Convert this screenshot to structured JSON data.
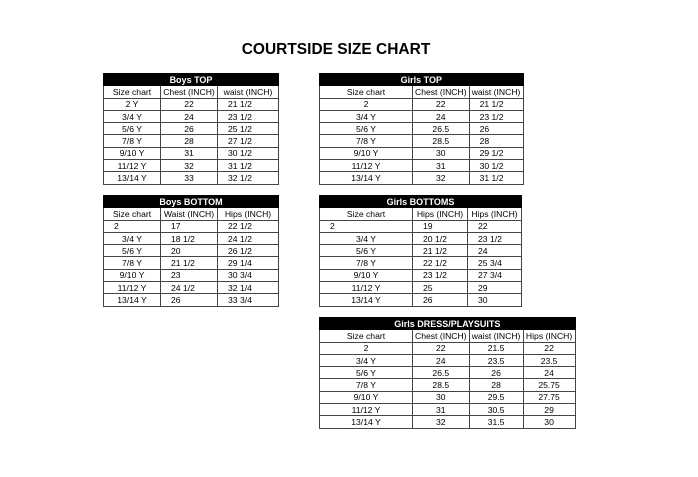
{
  "title": "COURTSIDE SIZE CHART",
  "tables": [
    {
      "title": "Boys TOP",
      "columns": [
        "Size chart",
        "Chest (INCH)",
        "waist (INCH)"
      ],
      "rows": [
        [
          "2 Y",
          "22",
          "21  1/2"
        ],
        [
          "3/4  Y",
          "24",
          "23  1/2"
        ],
        [
          "5/6 Y",
          "26",
          "25  1/2"
        ],
        [
          "7/8 Y",
          "28",
          "27  1/2"
        ],
        [
          "9/10 Y",
          "31",
          "30  1/2"
        ],
        [
          "11/12 Y",
          "32",
          "31  1/2"
        ],
        [
          "13/14 Y",
          "33",
          "32  1/2"
        ]
      ]
    },
    {
      "title": "Boys BOTTOM",
      "columns": [
        "Size chart",
        "Waist (INCH)",
        "Hips (INCH)"
      ],
      "rows": [
        [
          "2",
          "17",
          "22  1/2"
        ],
        [
          "3/4  Y",
          "18  1/2",
          "24  1/2"
        ],
        [
          "5/6 Y",
          "20",
          "26  1/2"
        ],
        [
          "7/8 Y",
          "21  1/2",
          "29  1/4"
        ],
        [
          "9/10 Y",
          "23",
          "30  3/4"
        ],
        [
          "11/12 Y",
          "24  1/2",
          "32  1/4"
        ],
        [
          "13/14 Y",
          "26",
          "33  3/4"
        ]
      ]
    },
    {
      "title": "Girls TOP",
      "columns": [
        "Size chart",
        "Chest (INCH)",
        "waist (INCH)"
      ],
      "rows": [
        [
          "2",
          "22",
          "21  1/2"
        ],
        [
          "3/4  Y",
          "24",
          "23  1/2"
        ],
        [
          "5/6 Y",
          "26.5",
          "26"
        ],
        [
          "7/8 Y",
          "28.5",
          "28"
        ],
        [
          "9/10 Y",
          "30",
          "29  1/2"
        ],
        [
          "11/12 Y",
          "31",
          "30  1/2"
        ],
        [
          "13/14 Y",
          "32",
          "31  1/2"
        ]
      ]
    },
    {
      "title": "Girls BOTTOMS",
      "columns": [
        "Size chart",
        "Hips (INCH)",
        "Hips (INCH)"
      ],
      "rows": [
        [
          "2",
          "19",
          "22"
        ],
        [
          "3/4  Y",
          "20  1/2",
          "23  1/2"
        ],
        [
          "5/6 Y",
          "21  1/2",
          "24"
        ],
        [
          "7/8 Y",
          "22  1/2",
          "25  3/4"
        ],
        [
          "9/10 Y",
          "23  1/2",
          "27  3/4"
        ],
        [
          "11/12 Y",
          "25",
          "29"
        ],
        [
          "13/14 Y",
          "26",
          "30"
        ]
      ]
    },
    {
      "title": "Girls DRESS/PLAYSUITS",
      "columns": [
        "Size chart",
        "Chest (INCH)",
        "waist (INCH)",
        "Hips (INCH)"
      ],
      "rows": [
        [
          "2",
          "22",
          "21.5",
          "22"
        ],
        [
          "3/4  Y",
          "24",
          "23.5",
          "23.5"
        ],
        [
          "5/6 Y",
          "26.5",
          "26",
          "24"
        ],
        [
          "7/8 Y",
          "28.5",
          "28",
          "25.75"
        ],
        [
          "9/10 Y",
          "30",
          "29.5",
          "27.75"
        ],
        [
          "11/12 Y",
          "31",
          "30.5",
          "29"
        ],
        [
          "13/14 Y",
          "32",
          "31.5",
          "30"
        ]
      ]
    }
  ]
}
